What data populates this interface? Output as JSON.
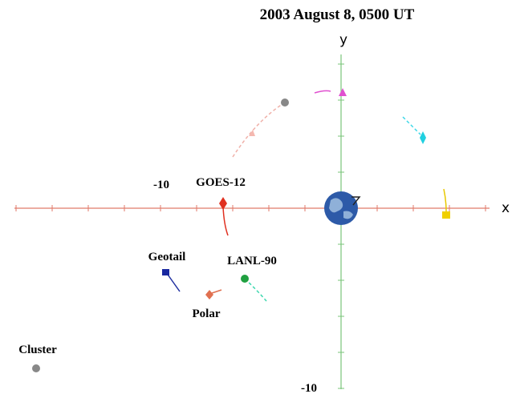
{
  "title": "2003 August 8, 0500 UT",
  "axes": {
    "x_label": "x",
    "y_label": "y",
    "x_tick_label": "-10",
    "y_tick_label": "-10"
  },
  "satellites": [
    {
      "label": "GOES-12"
    },
    {
      "label": "Geotail"
    },
    {
      "label": "LANL-90"
    },
    {
      "label": "Polar"
    },
    {
      "label": "Cluster"
    }
  ]
}
